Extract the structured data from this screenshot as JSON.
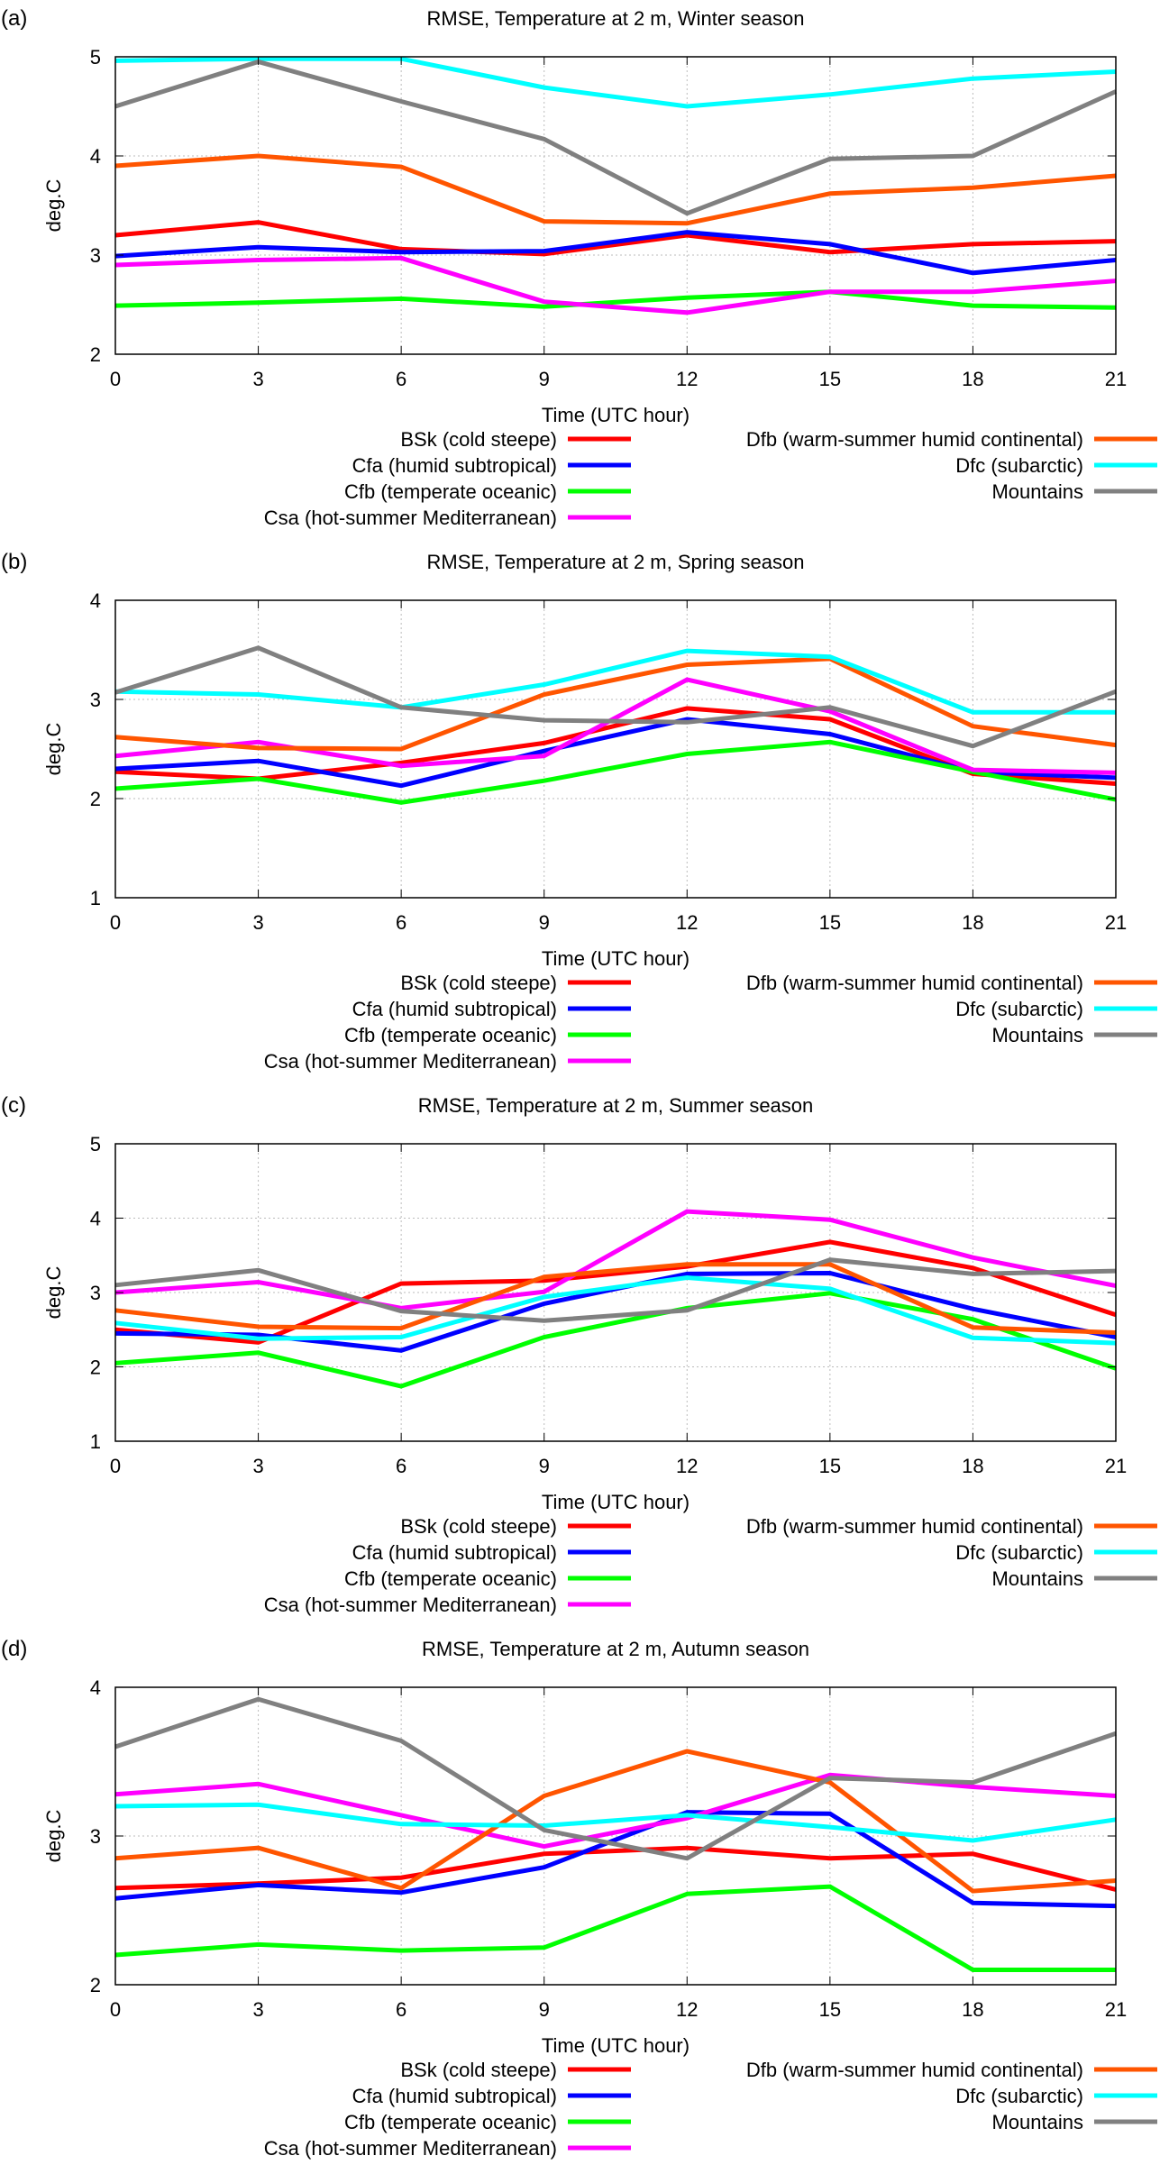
{
  "colors": {
    "BSk": "#ff0000",
    "Cfa": "#0000ff",
    "Cfb": "#00ff00",
    "Csa": "#ff00ff",
    "Dfb": "#ff5500",
    "Dfc": "#00ffff",
    "Mountains": "#808080",
    "grid": "#bbbbbb",
    "axis": "#000000"
  },
  "chart_data": [
    {
      "type": "line",
      "panel": "(a)",
      "title": "RMSE, Temperature at 2 m, Winter season",
      "xlabel": "Time (UTC hour)",
      "ylabel": "deg.C",
      "xlim": [
        0,
        21
      ],
      "ylim": [
        2,
        5
      ],
      "x": [
        0,
        3,
        6,
        9,
        12,
        15,
        18,
        21
      ],
      "xticks": [
        "0",
        "3",
        "6",
        "9",
        "12",
        "15",
        "18",
        "21"
      ],
      "yticks": [
        "2",
        "3",
        "4",
        "5"
      ],
      "grid": true,
      "legend": "below",
      "series": [
        {
          "name": "BSk (cold steepe)",
          "key": "BSk",
          "values": [
            3.2,
            3.33,
            3.06,
            3.01,
            3.2,
            3.03,
            3.11,
            3.14
          ]
        },
        {
          "name": "Cfa (humid subtropical)",
          "key": "Cfa",
          "values": [
            2.99,
            3.08,
            3.03,
            3.04,
            3.23,
            3.11,
            2.82,
            2.95
          ]
        },
        {
          "name": "Cfb (temperate oceanic)",
          "key": "Cfb",
          "values": [
            2.49,
            2.52,
            2.56,
            2.48,
            2.57,
            2.63,
            2.49,
            2.47
          ]
        },
        {
          "name": "Csa (hot-summer Mediterranean)",
          "key": "Csa",
          "values": [
            2.9,
            2.95,
            2.97,
            2.53,
            2.42,
            2.63,
            2.63,
            2.74
          ]
        },
        {
          "name": "Dfb (warm-summer humid continental)",
          "key": "Dfb",
          "values": [
            3.9,
            4.0,
            3.89,
            3.34,
            3.32,
            3.62,
            3.68,
            3.8
          ]
        },
        {
          "name": "Dfc (subarctic)",
          "key": "Dfc",
          "values": [
            4.96,
            4.98,
            4.98,
            4.69,
            4.5,
            4.62,
            4.78,
            4.85
          ]
        },
        {
          "name": "Mountains",
          "key": "Mountains",
          "values": [
            4.5,
            4.95,
            4.55,
            4.17,
            3.42,
            3.97,
            4.0,
            4.65
          ]
        }
      ]
    },
    {
      "type": "line",
      "panel": "(b)",
      "title": "RMSE, Temperature at 2 m, Spring season",
      "xlabel": "Time (UTC hour)",
      "ylabel": "deg.C",
      "xlim": [
        0,
        21
      ],
      "ylim": [
        1,
        4
      ],
      "x": [
        0,
        3,
        6,
        9,
        12,
        15,
        18,
        21
      ],
      "xticks": [
        "0",
        "3",
        "6",
        "9",
        "12",
        "15",
        "18",
        "21"
      ],
      "yticks": [
        "1",
        "2",
        "3",
        "4"
      ],
      "grid": true,
      "legend": "below",
      "series": [
        {
          "name": "BSk (cold steepe)",
          "key": "BSk",
          "values": [
            2.27,
            2.2,
            2.36,
            2.56,
            2.91,
            2.8,
            2.25,
            2.15
          ]
        },
        {
          "name": "Cfa (humid subtropical)",
          "key": "Cfa",
          "values": [
            2.3,
            2.38,
            2.13,
            2.48,
            2.8,
            2.65,
            2.27,
            2.21
          ]
        },
        {
          "name": "Cfb (temperate oceanic)",
          "key": "Cfb",
          "values": [
            2.1,
            2.2,
            1.96,
            2.18,
            2.45,
            2.57,
            2.27,
            1.99
          ]
        },
        {
          "name": "Csa (hot-summer Mediterranean)",
          "key": "Csa",
          "values": [
            2.43,
            2.57,
            2.33,
            2.43,
            3.2,
            2.88,
            2.29,
            2.26
          ]
        },
        {
          "name": "Dfb (warm-summer humid continental)",
          "key": "Dfb",
          "values": [
            2.62,
            2.51,
            2.5,
            3.05,
            3.35,
            3.41,
            2.73,
            2.54
          ]
        },
        {
          "name": "Dfc (subarctic)",
          "key": "Dfc",
          "values": [
            3.08,
            3.05,
            2.92,
            3.15,
            3.49,
            3.43,
            2.87,
            2.87
          ]
        },
        {
          "name": "Mountains",
          "key": "Mountains",
          "values": [
            3.07,
            3.52,
            2.92,
            2.79,
            2.77,
            2.92,
            2.53,
            3.08
          ]
        }
      ]
    },
    {
      "type": "line",
      "panel": "(c)",
      "title": "RMSE, Temperature at 2 m, Summer season",
      "xlabel": "Time (UTC hour)",
      "ylabel": "deg.C",
      "xlim": [
        0,
        21
      ],
      "ylim": [
        1,
        5
      ],
      "x": [
        0,
        3,
        6,
        9,
        12,
        15,
        18,
        21
      ],
      "xticks": [
        "0",
        "3",
        "6",
        "9",
        "12",
        "15",
        "18",
        "21"
      ],
      "yticks": [
        "1",
        "2",
        "3",
        "4",
        "5"
      ],
      "grid": true,
      "legend": "below",
      "series": [
        {
          "name": "BSk (cold steepe)",
          "key": "BSk",
          "values": [
            2.5,
            2.33,
            3.12,
            3.16,
            3.35,
            3.68,
            3.33,
            2.7
          ]
        },
        {
          "name": "Cfa (humid subtropical)",
          "key": "Cfa",
          "values": [
            2.45,
            2.43,
            2.22,
            2.85,
            3.25,
            3.26,
            2.78,
            2.4
          ]
        },
        {
          "name": "Cfb (temperate oceanic)",
          "key": "Cfb",
          "values": [
            2.05,
            2.19,
            1.74,
            2.4,
            2.79,
            2.99,
            2.64,
            1.98
          ]
        },
        {
          "name": "Csa (hot-summer Mediterranean)",
          "key": "Csa",
          "values": [
            3.0,
            3.14,
            2.79,
            3.01,
            4.09,
            3.98,
            3.47,
            3.09
          ]
        },
        {
          "name": "Dfb (warm-summer humid continental)",
          "key": "Dfb",
          "values": [
            2.76,
            2.54,
            2.52,
            3.21,
            3.38,
            3.38,
            2.53,
            2.46
          ]
        },
        {
          "name": "Dfc (subarctic)",
          "key": "Dfc",
          "values": [
            2.59,
            2.38,
            2.4,
            2.94,
            3.2,
            3.05,
            2.39,
            2.32
          ]
        },
        {
          "name": "Mountains",
          "key": "Mountains",
          "values": [
            3.1,
            3.3,
            2.75,
            2.62,
            2.76,
            3.44,
            3.25,
            3.29
          ]
        }
      ]
    },
    {
      "type": "line",
      "panel": "(d)",
      "title": "RMSE, Temperature at 2 m, Autumn season",
      "xlabel": "Time (UTC hour)",
      "ylabel": "deg.C",
      "xlim": [
        0,
        21
      ],
      "ylim": [
        2,
        4
      ],
      "x": [
        0,
        3,
        6,
        9,
        12,
        15,
        18,
        21
      ],
      "xticks": [
        "0",
        "3",
        "6",
        "9",
        "12",
        "15",
        "18",
        "21"
      ],
      "yticks": [
        "2",
        "3",
        "4"
      ],
      "grid": true,
      "legend": "below",
      "series": [
        {
          "name": "BSk (cold steepe)",
          "key": "BSk",
          "values": [
            2.65,
            2.68,
            2.72,
            2.88,
            2.92,
            2.85,
            2.88,
            2.64
          ]
        },
        {
          "name": "Cfa (humid subtropical)",
          "key": "Cfa",
          "values": [
            2.58,
            2.67,
            2.62,
            2.79,
            3.16,
            3.15,
            2.55,
            2.53
          ]
        },
        {
          "name": "Cfb (temperate oceanic)",
          "key": "Cfb",
          "values": [
            2.2,
            2.27,
            2.23,
            2.25,
            2.61,
            2.66,
            2.1,
            2.1
          ]
        },
        {
          "name": "Csa (hot-summer Mediterranean)",
          "key": "Csa",
          "values": [
            3.28,
            3.35,
            3.14,
            2.93,
            3.12,
            3.41,
            3.33,
            3.27
          ]
        },
        {
          "name": "Dfb (warm-summer humid continental)",
          "key": "Dfb",
          "values": [
            2.85,
            2.92,
            2.65,
            3.27,
            3.57,
            3.36,
            2.63,
            2.7
          ]
        },
        {
          "name": "Dfc (subarctic)",
          "key": "Dfc",
          "values": [
            3.2,
            3.21,
            3.08,
            3.07,
            3.14,
            3.06,
            2.97,
            3.11
          ]
        },
        {
          "name": "Mountains",
          "key": "Mountains",
          "values": [
            3.6,
            3.92,
            3.64,
            3.04,
            2.85,
            3.39,
            3.36,
            3.69
          ]
        }
      ]
    }
  ]
}
